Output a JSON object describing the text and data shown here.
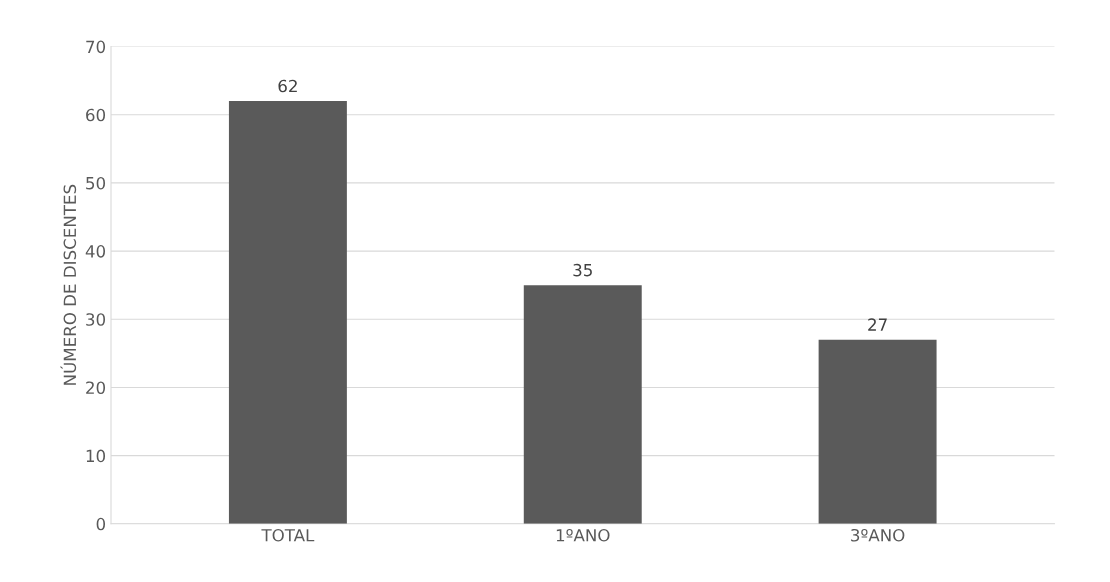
{
  "chart_data": {
    "type": "bar",
    "ylabel": "NÚMERO DE DISCENTES",
    "categories": [
      "TOTAL",
      "1ºANO",
      "3ºANO"
    ],
    "values": [
      62,
      35,
      27
    ],
    "color": "#5a5a5a",
    "ylim": [
      0,
      70
    ],
    "yticks": [
      0,
      10,
      20,
      30,
      40,
      50,
      60,
      70
    ],
    "grid": "y",
    "data_labels": true
  }
}
